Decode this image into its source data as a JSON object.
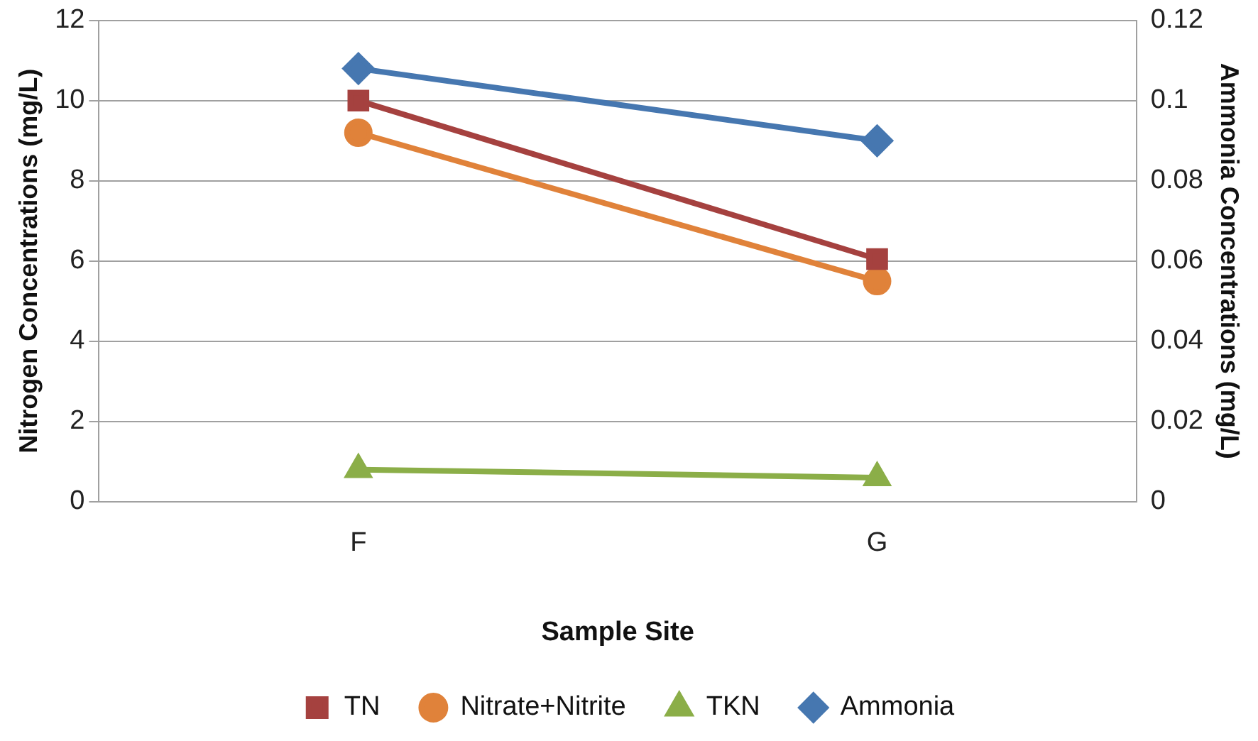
{
  "chart_data": {
    "type": "line",
    "xlabel": "Sample Site",
    "ylabel": "Nitrogen Concentrations (mg/L)",
    "y2label": "Ammonia Concentrations (mg/L)",
    "categories": [
      "F",
      "G"
    ],
    "series": [
      {
        "name": "TN",
        "color": "#a5413f",
        "values": [
          10.0,
          6.05
        ],
        "marker": "square"
      },
      {
        "name": "Nitrate+Nitrite",
        "color": "#e0823a",
        "values": [
          9.2,
          5.5
        ],
        "marker": "circle"
      },
      {
        "name": "TKN",
        "color": "#8bae48",
        "values": [
          0.8,
          0.6
        ],
        "marker": "triangle"
      },
      {
        "name": "Ammonia",
        "color": "#4677b0",
        "values": [
          0.108,
          0.09
        ],
        "marker": "diamond",
        "axis": "y2"
      }
    ],
    "ylim": [
      0,
      12
    ],
    "yticks": [
      0,
      2,
      4,
      6,
      8,
      10,
      12
    ],
    "y2lim": [
      0,
      0.12
    ],
    "y2ticks": [
      0,
      0.02,
      0.04,
      0.06,
      0.08,
      0.1,
      0.12
    ],
    "grid": "y",
    "legend": "bottom",
    "line_style": "solid"
  }
}
